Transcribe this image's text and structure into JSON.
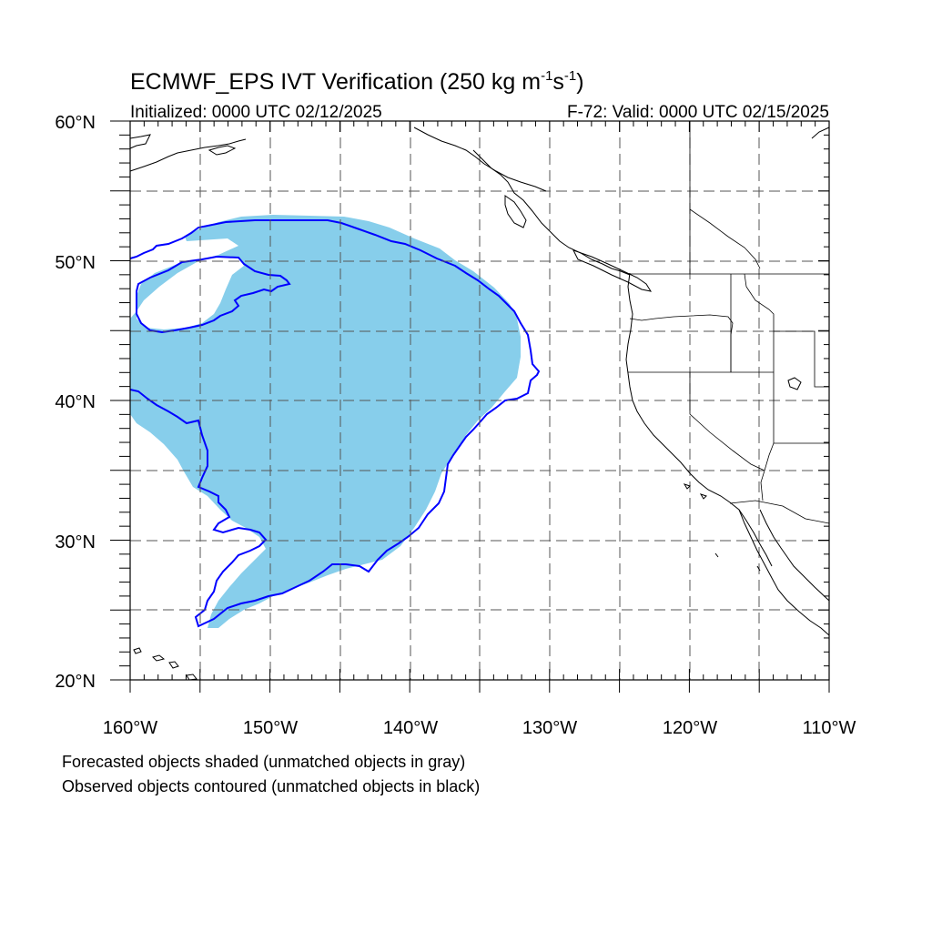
{
  "title": {
    "main": "ECMWF_EPS IVT Verification (250 kg m",
    "sup1": "-1",
    "mid": "s",
    "sup2": "-1",
    "end": ")"
  },
  "subtitle_left": "Initialized: 0000 UTC 02/12/2025",
  "subtitle_right": "F-72: Valid: 0000 UTC 02/15/2025",
  "lat_labels": [
    "60°N",
    "50°N",
    "40°N",
    "30°N",
    "20°N"
  ],
  "lon_labels": [
    "160°W",
    "150°W",
    "140°W",
    "130°W",
    "120°W",
    "110°W"
  ],
  "caption_lines": [
    "Forecasted objects shaded (unmatched objects in gray)",
    "Observed objects contoured (unmatched objects in black)"
  ],
  "colors": {
    "forecast_fill": "#87ceeb",
    "observed_contour": "#0000ff",
    "coastline": "#000000",
    "grid": "#555555"
  },
  "map": {
    "projection": "cylindrical equidistant",
    "lon_range": [
      -160,
      -110
    ],
    "lat_range": [
      20,
      60
    ],
    "gridlines": "dashed every 5 degrees"
  }
}
